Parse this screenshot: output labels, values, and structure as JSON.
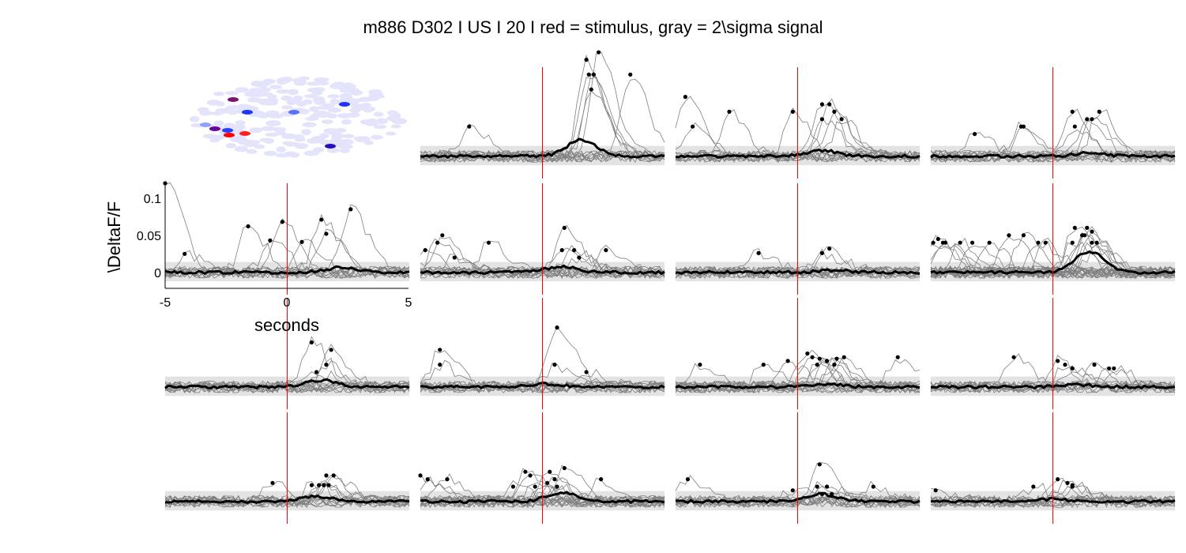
{
  "title": "m886 D302 I US I 20 I red = stimulus, gray = 2\\sigma signal",
  "colors": {
    "stimulus": "#ff0000",
    "sigma_band": "#e3e3e3",
    "trace": "#7f7f7f",
    "mean": "#000000",
    "roi_background": "#e3e4fb"
  },
  "chart_data": {
    "type": "line",
    "layout": "small-multiples grid, 4 rows x 4 columns; row 1 column 1 is an ROI map",
    "x_range": [
      -5,
      5
    ],
    "y_range": [
      -0.03,
      0.12
    ],
    "stimulus_time": 0,
    "axes_panel": {
      "xlabel": "seconds",
      "ylabel": "\\DeltaF/F",
      "x_ticks": [
        "-5",
        "0",
        "5"
      ],
      "y_ticks": [
        "0",
        "0.05",
        "0.1"
      ],
      "y_tick_values": [
        0,
        0.05,
        0.1
      ]
    },
    "sigma_band": [
      -0.012,
      0.014
    ],
    "roi_map": {
      "highlighted_rois": [
        {
          "color": "#7f1070"
        },
        {
          "color": "#1e34ff"
        },
        {
          "color": "#1e34ff"
        },
        {
          "color": "#5a70ff"
        },
        {
          "color": "#ff0000"
        },
        {
          "color": "#6a00a0"
        },
        {
          "color": "#2a40ff"
        },
        {
          "color": "#ff2020"
        },
        {
          "color": "#2010c0"
        },
        {
          "color": "#8fa0ff"
        }
      ]
    },
    "panels": [
      {
        "row": 0,
        "col": 1,
        "mean_peak_time": 1.6,
        "mean_peak": 0.022,
        "events": [
          [
            -3.0,
            0.04
          ],
          [
            1.8,
            0.13
          ],
          [
            1.9,
            0.11
          ],
          [
            2.1,
            0.11
          ],
          [
            2.3,
            0.14
          ],
          [
            3.6,
            0.11
          ],
          [
            2.0,
            0.09
          ]
        ]
      },
      {
        "row": 0,
        "col": 2,
        "mean_peak_time": 1.0,
        "mean_peak": 0.008,
        "events": [
          [
            -4.6,
            0.08
          ],
          [
            -4.3,
            0.04
          ],
          [
            -2.8,
            0.06
          ],
          [
            -0.2,
            0.06
          ],
          [
            1.0,
            0.07
          ],
          [
            1.3,
            0.07
          ],
          [
            1.5,
            0.06
          ],
          [
            1.0,
            0.05
          ],
          [
            1.8,
            0.05
          ]
        ]
      },
      {
        "row": 0,
        "col": 3,
        "mean_peak_time": 1.5,
        "mean_peak": 0.005,
        "events": [
          [
            -3.2,
            0.03
          ],
          [
            -1.3,
            0.04
          ],
          [
            -1.2,
            0.04
          ],
          [
            0.8,
            0.06
          ],
          [
            0.9,
            0.04
          ],
          [
            1.6,
            0.05
          ],
          [
            1.9,
            0.06
          ],
          [
            1.4,
            0.05
          ]
        ]
      },
      {
        "row": 1,
        "col": 0,
        "mean_peak_time": 2.3,
        "mean_peak": 0.007,
        "events": [
          [
            -5.0,
            0.12
          ],
          [
            -4.2,
            0.025
          ],
          [
            -1.6,
            0.062
          ],
          [
            -0.7,
            0.043
          ],
          [
            -0.2,
            0.068
          ],
          [
            0.6,
            0.041
          ],
          [
            1.4,
            0.071
          ],
          [
            1.6,
            0.052
          ],
          [
            2.6,
            0.085
          ]
        ]
      },
      {
        "row": 1,
        "col": 1,
        "mean_peak_time": 0.8,
        "mean_peak": 0.008,
        "events": [
          [
            -4.8,
            0.03
          ],
          [
            -4.3,
            0.04
          ],
          [
            -4.1,
            0.05
          ],
          [
            -3.6,
            0.02
          ],
          [
            -2.2,
            0.04
          ],
          [
            0.9,
            0.06
          ],
          [
            0.8,
            0.03
          ],
          [
            1.5,
            0.02
          ],
          [
            1.3,
            0.03
          ],
          [
            2.6,
            0.03
          ]
        ]
      },
      {
        "row": 1,
        "col": 2,
        "mean_peak_time": 1.5,
        "mean_peak": 0.003,
        "events": [
          [
            -1.6,
            0.026
          ],
          [
            1.0,
            0.026
          ],
          [
            1.3,
            0.032
          ]
        ]
      },
      {
        "row": 1,
        "col": 3,
        "mean_peak_time": 1.5,
        "mean_peak": 0.028,
        "events": [
          [
            -4.9,
            0.04
          ],
          [
            -4.7,
            0.045
          ],
          [
            -4.4,
            0.04
          ],
          [
            -3.8,
            0.04
          ],
          [
            -3.3,
            0.04
          ],
          [
            -2.6,
            0.04
          ],
          [
            -1.8,
            0.05
          ],
          [
            -1.2,
            0.05
          ],
          [
            -0.3,
            0.04
          ],
          [
            0.8,
            0.04
          ],
          [
            0.9,
            0.06
          ],
          [
            1.2,
            0.05
          ],
          [
            1.4,
            0.06
          ],
          [
            1.6,
            0.055
          ],
          [
            1.3,
            0.05
          ],
          [
            1.6,
            0.04
          ],
          [
            1.8,
            0.04
          ],
          [
            -4.5,
            0.04
          ],
          [
            -0.6,
            0.04
          ]
        ]
      },
      {
        "row": 2,
        "col": 0,
        "mean_peak_time": 1.4,
        "mean_peak": 0.009,
        "events": [
          [
            1.0,
            0.06
          ],
          [
            1.8,
            0.05
          ],
          [
            1.2,
            0.02
          ],
          [
            1.6,
            0.03
          ]
        ]
      },
      {
        "row": 2,
        "col": 1,
        "mean_peak_time": 0.2,
        "mean_peak": 0.004,
        "events": [
          [
            -4.2,
            0.05
          ],
          [
            -4.2,
            0.03
          ],
          [
            0.6,
            0.08
          ],
          [
            0.5,
            0.03
          ],
          [
            1.8,
            0.02
          ]
        ]
      },
      {
        "row": 2,
        "col": 2,
        "mean_peak_time": 1.2,
        "mean_peak": 0.004,
        "events": [
          [
            -4.0,
            0.03
          ],
          [
            -1.4,
            0.03
          ],
          [
            -0.4,
            0.035
          ],
          [
            0.4,
            0.045
          ],
          [
            0.6,
            0.04
          ],
          [
            0.9,
            0.038
          ],
          [
            1.2,
            0.035
          ],
          [
            1.6,
            0.038
          ],
          [
            1.9,
            0.04
          ],
          [
            1.5,
            0.03
          ],
          [
            4.1,
            0.04
          ],
          [
            0.8,
            0.03
          ]
        ]
      },
      {
        "row": 2,
        "col": 3,
        "mean_peak_time": 1.0,
        "mean_peak": 0.003,
        "events": [
          [
            -1.6,
            0.04
          ],
          [
            0.2,
            0.035
          ],
          [
            0.8,
            0.025
          ],
          [
            0.5,
            0.03
          ],
          [
            1.7,
            0.03
          ],
          [
            2.3,
            0.025
          ],
          [
            2.5,
            0.025
          ]
        ]
      },
      {
        "row": 3,
        "col": 0,
        "mean_peak_time": 1.2,
        "mean_peak": 0.007,
        "events": [
          [
            -0.6,
            0.025
          ],
          [
            1.0,
            0.022
          ],
          [
            1.6,
            0.035
          ],
          [
            1.5,
            0.022
          ],
          [
            1.9,
            0.035
          ],
          [
            1.7,
            0.022
          ],
          [
            1.3,
            0.022
          ]
        ]
      },
      {
        "row": 3,
        "col": 1,
        "mean_peak_time": 0.8,
        "mean_peak": 0.012,
        "events": [
          [
            -5.0,
            0.035
          ],
          [
            -4.7,
            0.03
          ],
          [
            -3.9,
            0.03
          ],
          [
            -1.2,
            0.02
          ],
          [
            -0.7,
            0.04
          ],
          [
            -0.5,
            0.035
          ],
          [
            -0.3,
            0.02
          ],
          [
            0.2,
            0.025
          ],
          [
            0.3,
            0.04
          ],
          [
            0.9,
            0.045
          ],
          [
            0.5,
            0.03
          ],
          [
            2.4,
            0.03
          ],
          [
            0.6,
            0.02
          ]
        ]
      },
      {
        "row": 3,
        "col": 2,
        "mean_peak_time": 1.0,
        "mean_peak": 0.01,
        "events": [
          [
            -4.5,
            0.03
          ],
          [
            -0.2,
            0.015
          ],
          [
            0.9,
            0.05
          ],
          [
            0.8,
            0.02
          ],
          [
            1.0,
            0.01
          ],
          [
            1.2,
            0.02
          ],
          [
            1.4,
            0.01
          ],
          [
            3.1,
            0.02
          ]
        ]
      },
      {
        "row": 3,
        "col": 3,
        "mean_peak_time": 0.0,
        "mean_peak": 0.003,
        "events": [
          [
            -4.8,
            0.015
          ],
          [
            -0.8,
            0.02
          ],
          [
            0.2,
            0.03
          ],
          [
            0.6,
            0.025
          ],
          [
            0.8,
            0.022
          ],
          [
            0.8,
            0.02
          ]
        ]
      }
    ]
  }
}
